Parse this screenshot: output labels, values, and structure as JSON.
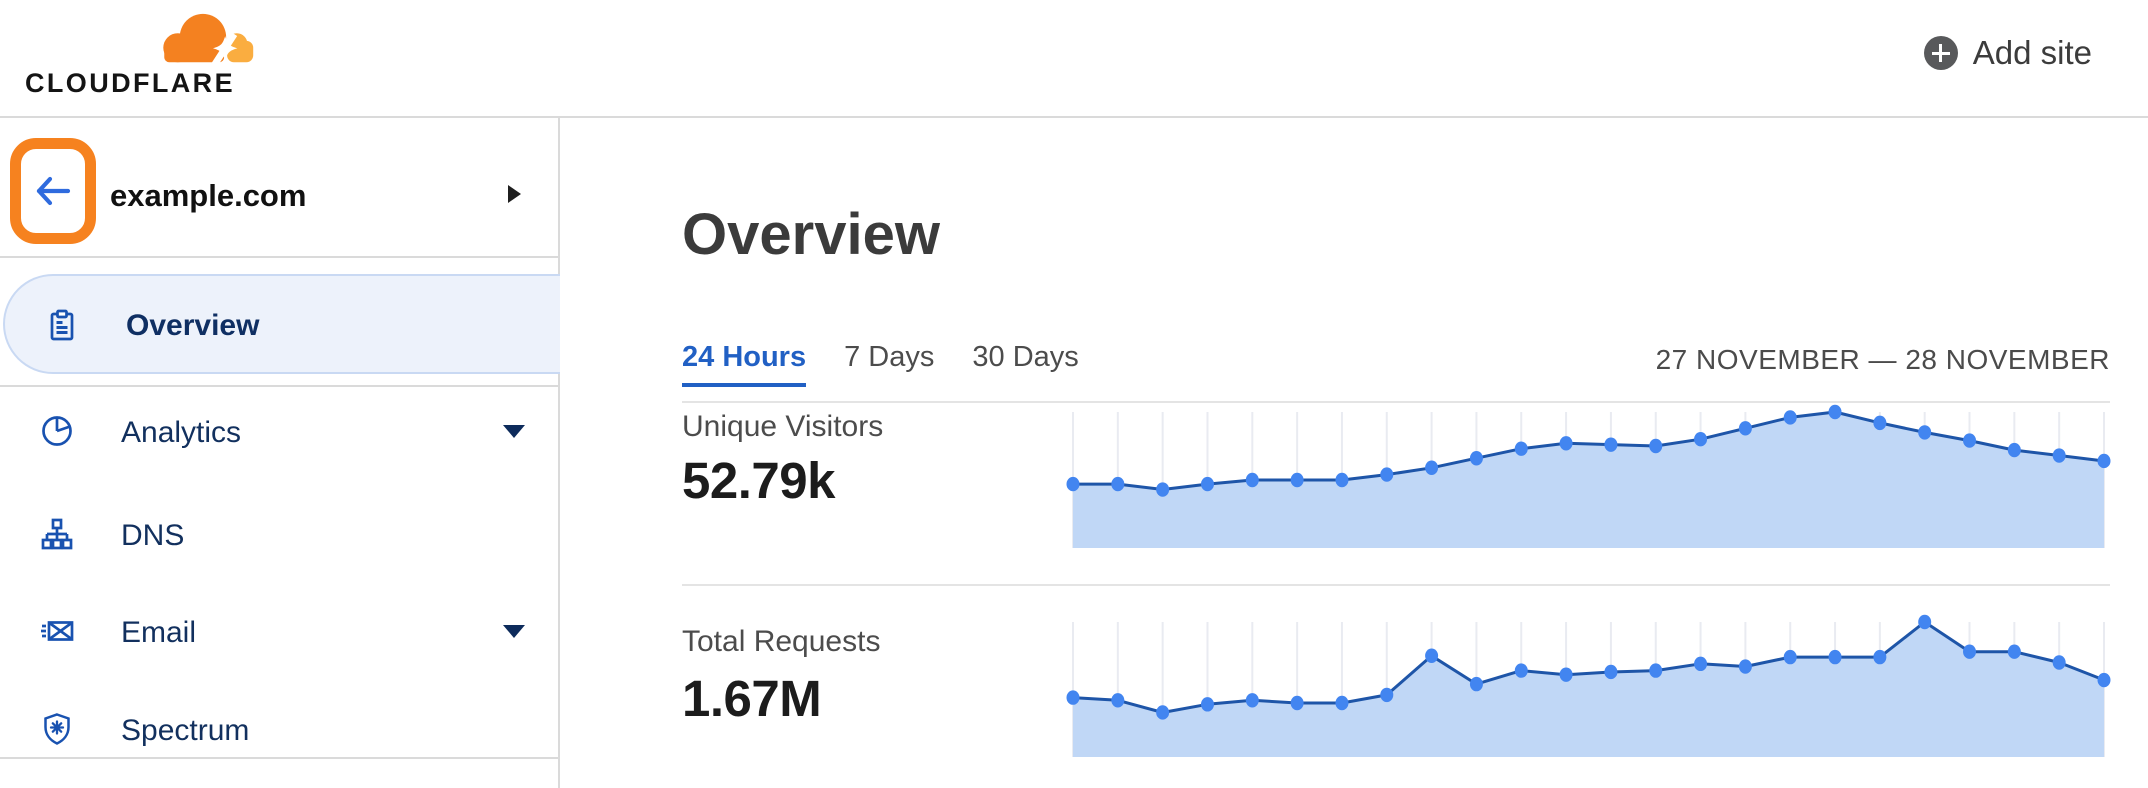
{
  "header": {
    "logo_text": "CLOUDFLARE",
    "add_site_label": "Add site"
  },
  "sidebar": {
    "site_name": "example.com",
    "items": [
      {
        "label": "Overview",
        "icon": "clipboard-icon",
        "selected": true,
        "has_caret": false
      },
      {
        "label": "Analytics",
        "icon": "pie-chart-icon",
        "selected": false,
        "has_caret": true
      },
      {
        "label": "DNS",
        "icon": "hierarchy-icon",
        "selected": false,
        "has_caret": false
      },
      {
        "label": "Email",
        "icon": "envelope-icon",
        "selected": false,
        "has_caret": true
      },
      {
        "label": "Spectrum",
        "icon": "shield-icon",
        "selected": false,
        "has_caret": false
      }
    ],
    "annotation": {
      "description": "orange highlight box around back arrow",
      "color": "#F6821F"
    }
  },
  "main": {
    "title": "Overview",
    "tabs": [
      {
        "label": "24 Hours",
        "active": true
      },
      {
        "label": "7 Days",
        "active": false
      },
      {
        "label": "30 Days",
        "active": false
      }
    ],
    "date_range": "27 NOVEMBER — 28 NOVEMBER",
    "metrics": [
      {
        "label": "Unique Visitors",
        "value": "52.79k"
      },
      {
        "label": "Total Requests",
        "value": "1.67M"
      }
    ]
  },
  "chart_data": [
    {
      "type": "area",
      "title": "Unique Visitors",
      "displayed_total": "52.79k",
      "x_description": "hourly points over 24-hour window, 27–28 November (axis unlabeled)",
      "y_description": "relative height, % of series max (no y-axis labels shown)",
      "ylim": [
        0,
        100
      ],
      "grid": "vertical gridlines at each point",
      "legend": false,
      "values_relative_pct": [
        47,
        47,
        43,
        47,
        50,
        50,
        50,
        54,
        59,
        66,
        73,
        77,
        76,
        75,
        80,
        88,
        96,
        100,
        92,
        85,
        79,
        72,
        68,
        64
      ]
    },
    {
      "type": "area",
      "title": "Total Requests",
      "displayed_total": "1.67M",
      "x_description": "hourly points over 24-hour window, 27–28 November (axis unlabeled)",
      "y_description": "relative height, % of series max (no y-axis labels shown)",
      "ylim": [
        0,
        100
      ],
      "grid": "vertical gridlines at each point",
      "legend": false,
      "values_relative_pct": [
        44,
        42,
        33,
        39,
        42,
        40,
        40,
        46,
        75,
        54,
        64,
        61,
        63,
        64,
        69,
        67,
        74,
        74,
        74,
        100,
        78,
        78,
        70,
        57
      ]
    }
  ],
  "colors": {
    "brand_orange": "#F48120",
    "brand_orange_light": "#FAAD40",
    "annotation_orange": "#F6821F",
    "nav_icon_blue": "#1952B0",
    "nav_text_navy": "#12305E",
    "selected_item_bg": "#EDF2FB",
    "active_tab_blue": "#2160C4",
    "back_arrow_blue": "#2F6BDE",
    "chart_line": "#1E55A8",
    "chart_fill": "#C0D7F6",
    "chart_dot": "#4285F0",
    "chart_grid": "#E9EBF1"
  }
}
